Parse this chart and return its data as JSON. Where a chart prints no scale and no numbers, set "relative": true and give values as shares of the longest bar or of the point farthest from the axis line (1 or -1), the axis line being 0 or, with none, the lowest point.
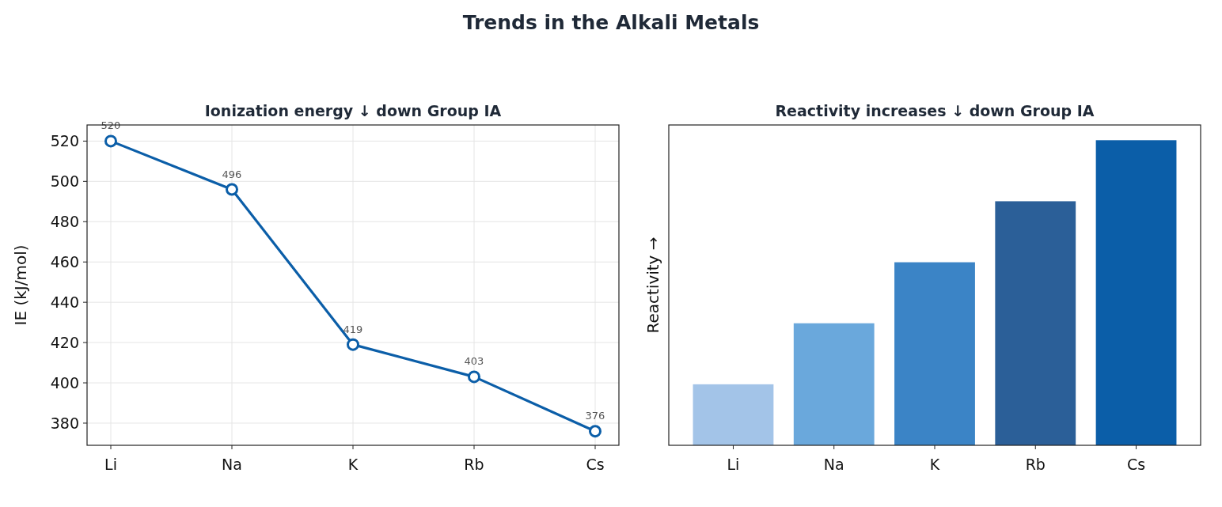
{
  "chart_data": [
    {
      "type": "line",
      "title": "Ionization energy ↓ down Group IA",
      "annotations": [
        "Trends in the Alkali Metals"
      ],
      "ylabel": "IE (kJ/mol)",
      "categories": [
        "Li",
        "Na",
        "K",
        "Rb",
        "Cs"
      ],
      "series": [
        {
          "color": "#0b5ea8",
          "values": [
            520,
            496,
            419,
            403,
            376
          ]
        }
      ],
      "ylim": [
        369,
        528
      ],
      "yticks": [
        380,
        400,
        420,
        440,
        460,
        480,
        500,
        520
      ],
      "grid": true,
      "marker": "circle",
      "data_labels": true
    },
    {
      "type": "bar",
      "title": "Reactivity increases ↓ down Group IA",
      "ylabel": "Reactivity →",
      "categories": [
        "Li",
        "Na",
        "K",
        "Rb",
        "Cs"
      ],
      "values": [
        0.2,
        0.4,
        0.6,
        0.8,
        1.0
      ],
      "colors": [
        "#a3c4e8",
        "#6aa8dc",
        "#3b84c6",
        "#2b5f98",
        "#0b5ea8"
      ],
      "relative": true
    }
  ]
}
